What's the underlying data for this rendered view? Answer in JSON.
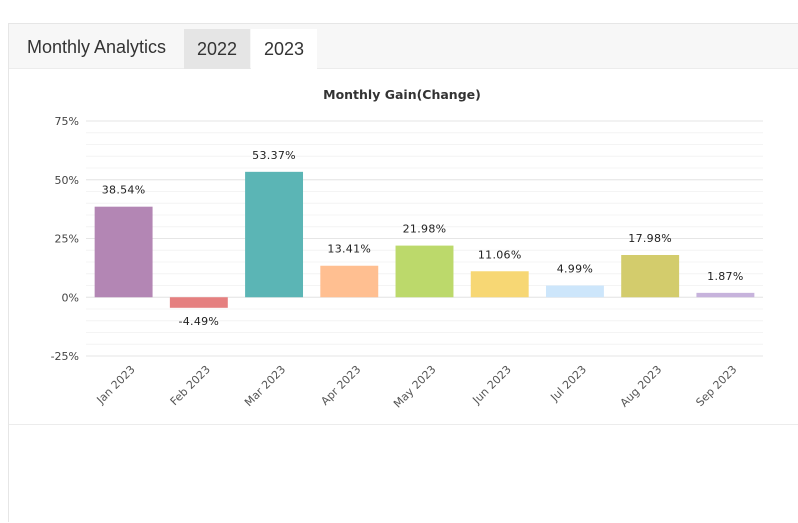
{
  "header": {
    "title": "Monthly Analytics",
    "tabs": [
      {
        "label": "2022",
        "active": false
      },
      {
        "label": "2023",
        "active": true
      }
    ]
  },
  "chart_data": {
    "type": "bar",
    "title": "Monthly Gain(Change)",
    "xlabel": "",
    "ylabel": "",
    "ylim": [
      -25,
      75
    ],
    "yticks": [
      75,
      50,
      25,
      0,
      -25
    ],
    "ytick_labels": [
      "75%",
      "50%",
      "25%",
      "0%",
      "-25%"
    ],
    "grid": true,
    "categories": [
      "Jan 2023",
      "Feb 2023",
      "Mar 2023",
      "Apr 2023",
      "May 2023",
      "Jun 2023",
      "Jul 2023",
      "Aug 2023",
      "Sep 2023"
    ],
    "values": [
      38.54,
      -4.49,
      53.37,
      13.41,
      21.98,
      11.06,
      4.99,
      17.98,
      1.87
    ],
    "data_labels": [
      "38.54%",
      "-4.49%",
      "53.37%",
      "13.41%",
      "21.98%",
      "11.06%",
      "4.99%",
      "17.98%",
      "1.87%"
    ],
    "colors": [
      "#b386b4",
      "#e57f7f",
      "#5bb5b5",
      "#ffbf91",
      "#bcd96b",
      "#f7d774",
      "#cde6fb",
      "#d3cc6c",
      "#c7b3dc"
    ]
  }
}
